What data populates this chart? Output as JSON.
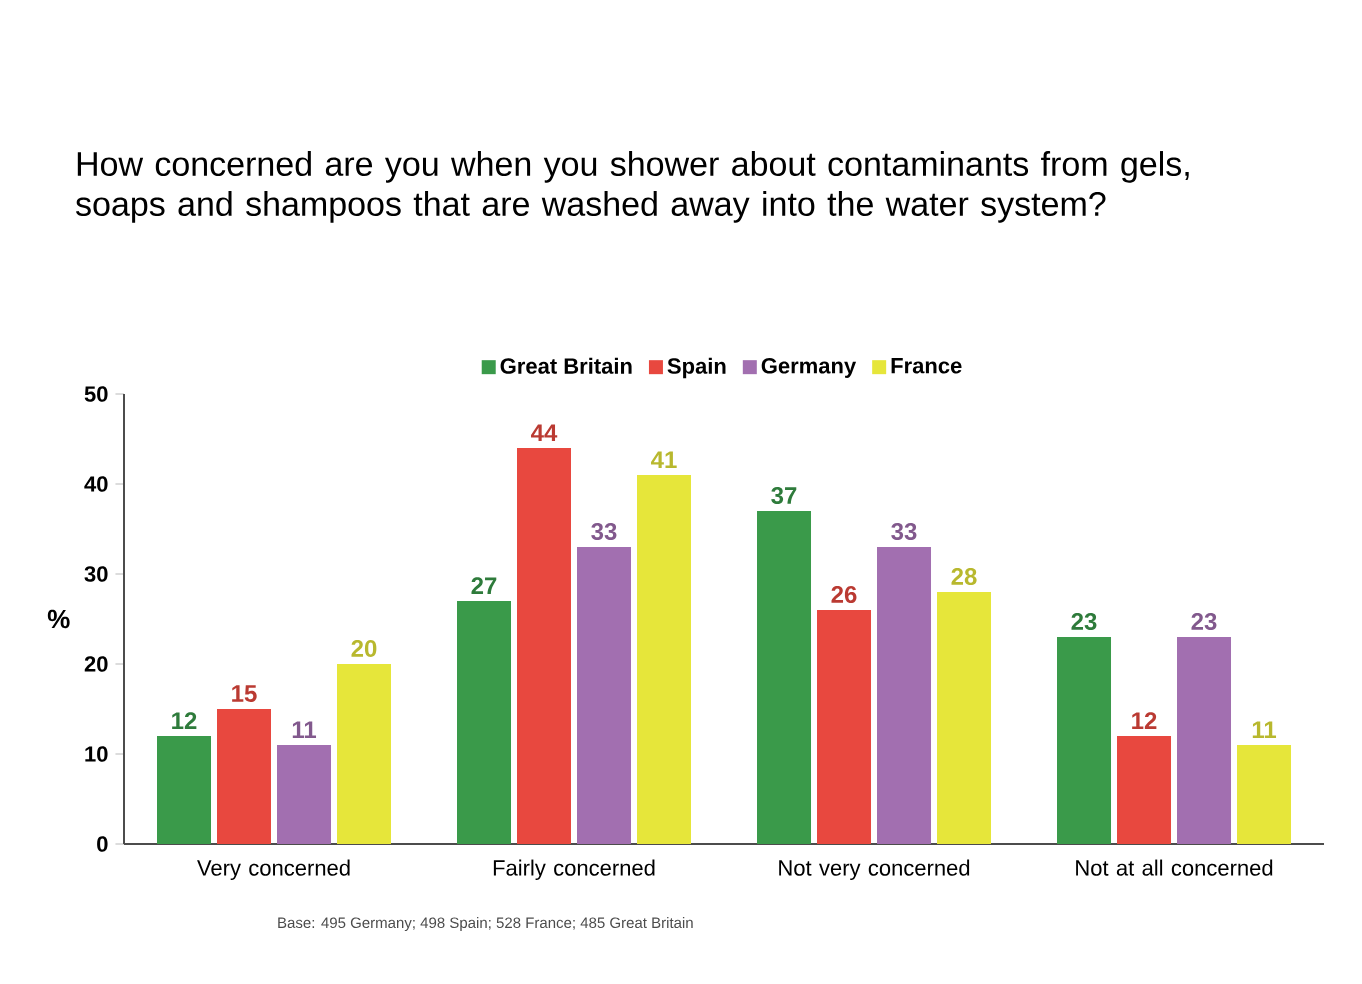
{
  "chart_data": {
    "type": "bar",
    "title": "How concerned are you when you shower about contaminants from gels, soaps and shampoos that are washed away into the water system?",
    "ylabel": "%",
    "categories": [
      "Very concerned",
      "Fairly concerned",
      "Not very concerned",
      "Not at all concerned"
    ],
    "series": [
      {
        "name": "Great Britain",
        "color": "#3a9a4a",
        "values": [
          12,
          27,
          37,
          23
        ]
      },
      {
        "name": "Spain",
        "color": "#e8483f",
        "values": [
          15,
          44,
          26,
          12
        ]
      },
      {
        "name": "Germany",
        "color": "#a26fb0",
        "values": [
          11,
          33,
          33,
          23
        ]
      },
      {
        "name": "France",
        "color": "#e6e63a",
        "values": [
          20,
          41,
          28,
          11
        ]
      }
    ],
    "ylim": [
      0,
      50
    ],
    "yticks": [
      0,
      10,
      20,
      30,
      40,
      50
    ],
    "grid": false,
    "legend": "top",
    "data_labels": true,
    "annotations": [
      "Base: 495 Germany; 498 Spain; 528 France; 485 Great Britain"
    ]
  }
}
